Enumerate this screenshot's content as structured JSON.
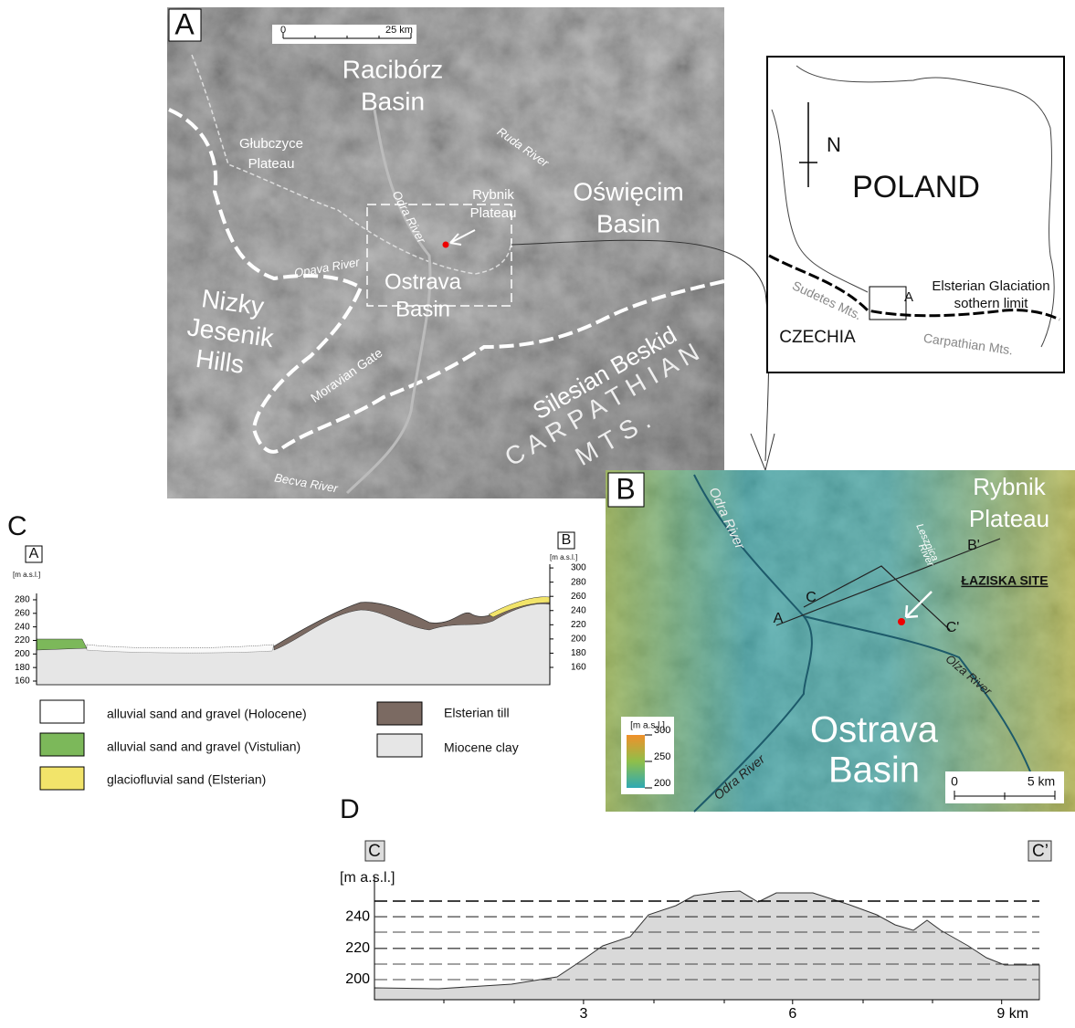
{
  "panel_a": {
    "label": "A",
    "scale": [
      "0",
      "25 km"
    ],
    "raciborz_basin": [
      "Racibórz",
      "Basin"
    ],
    "glubczyce_plateau": [
      "Głubczyce",
      "Plateau"
    ],
    "ruda_river": "Ruda River",
    "oswiecim_basin": [
      "Oświęcim",
      "Basin"
    ],
    "odra_river": "Odra River",
    "rybnik_plateau": [
      "Rybnik",
      "Plateau"
    ],
    "opava_river": "Opava River",
    "ostrava_basin": [
      "Ostrava",
      "Basin"
    ],
    "nizky_jesenik_hills": [
      "Nizky",
      "Jesenik",
      "Hills"
    ],
    "moravian_gate": "Moravian Gate",
    "silesian_beskid": "Silesian Beskid",
    "carpathian_mts": [
      "C A R P A T H I A N",
      "M T S ."
    ],
    "becva_river": "Becva River"
  },
  "inset": {
    "north": "N",
    "country": "POLAND",
    "limit": [
      "Elsterian Glaciation",
      "sothern limit"
    ],
    "area": "A",
    "czechia": "CZECHIA",
    "sudetes": "Sudetes Mts.",
    "carpathian": "Carpathian Mts."
  },
  "panel_b": {
    "label": "B",
    "rybnik_plateau": [
      "Rybnik",
      "Plateau"
    ],
    "odra_river_north": "Odra River",
    "lesznica_river": [
      "Lesznica",
      "River"
    ],
    "b_prime": "B'",
    "site": "ŁAZISKA SITE",
    "point_a": "A",
    "point_c": "C",
    "c_prime": "C'",
    "olza_river": "Olza River",
    "odra_river_south": "Odra River",
    "ostrava_basin": [
      "Ostrava",
      "Basin"
    ],
    "legend_title": "[m a.s.l.]",
    "legend_ticks": [
      300,
      250,
      200
    ],
    "scale": [
      "0",
      "5 km"
    ]
  },
  "panel_c": {
    "label": "C",
    "left_end": "A",
    "right_end": "B",
    "unit_left": "[m a.s.l.]",
    "unit_right": "[m a.s.l.]",
    "left_ticks": [
      280,
      260,
      240,
      220,
      200,
      180,
      160
    ],
    "right_ticks": [
      300,
      280,
      260,
      240,
      220,
      200,
      180,
      160
    ],
    "legend": [
      "alluvial sand and gravel (Holocene)",
      "alluvial sand and gravel (Vistulian)",
      "glaciofluvial sand (Elsterian)",
      "Elsterian till",
      "Miocene clay"
    ]
  },
  "panel_d": {
    "label": "D",
    "left_end": "C",
    "right_end": "C’",
    "unit": "[m a.s.l.]",
    "yticks": [
      200,
      220,
      240
    ],
    "xticks": [
      3,
      6,
      {
        "value": 9,
        "label": "9 km"
      }
    ]
  }
}
